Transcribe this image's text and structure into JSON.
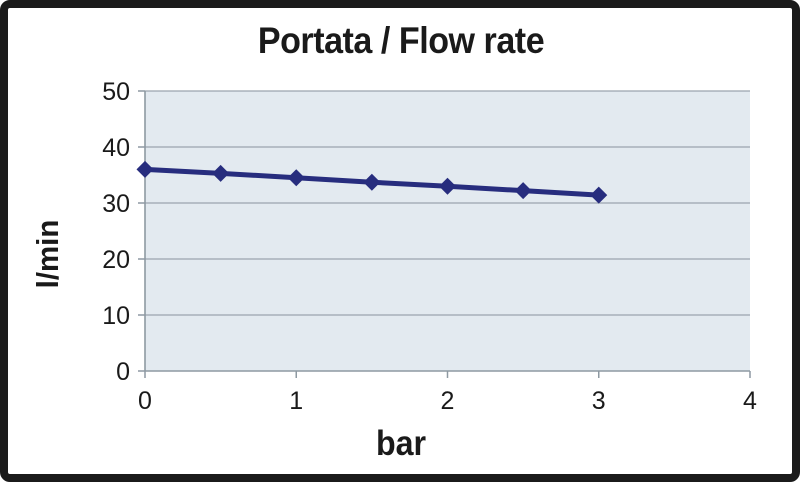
{
  "chart": {
    "title": "Portata / Flow rate",
    "xlabel": "bar",
    "ylabel": "l/min"
  },
  "chart_data": {
    "type": "line",
    "title": "Portata / Flow rate",
    "xlabel": "bar",
    "ylabel": "l/min",
    "x": [
      0,
      0.5,
      1,
      1.5,
      2,
      2.5,
      3
    ],
    "values": [
      36,
      35.3,
      34.5,
      33.7,
      33,
      32.2,
      31.4
    ],
    "xlim": [
      0,
      4
    ],
    "ylim": [
      0,
      50
    ],
    "x_ticks": [
      0,
      1,
      2,
      3,
      4
    ],
    "y_ticks": [
      0,
      10,
      20,
      30,
      40,
      50
    ],
    "grid": "horizontal",
    "legend": false,
    "marker": "diamond",
    "colors": {
      "line": "#272d7e",
      "plot_bg": "#e3eaf0",
      "grid": "#9aa5ae",
      "axis": "#8e99a2",
      "text": "#1a1a1a",
      "frame": "#1b1b1b"
    }
  }
}
